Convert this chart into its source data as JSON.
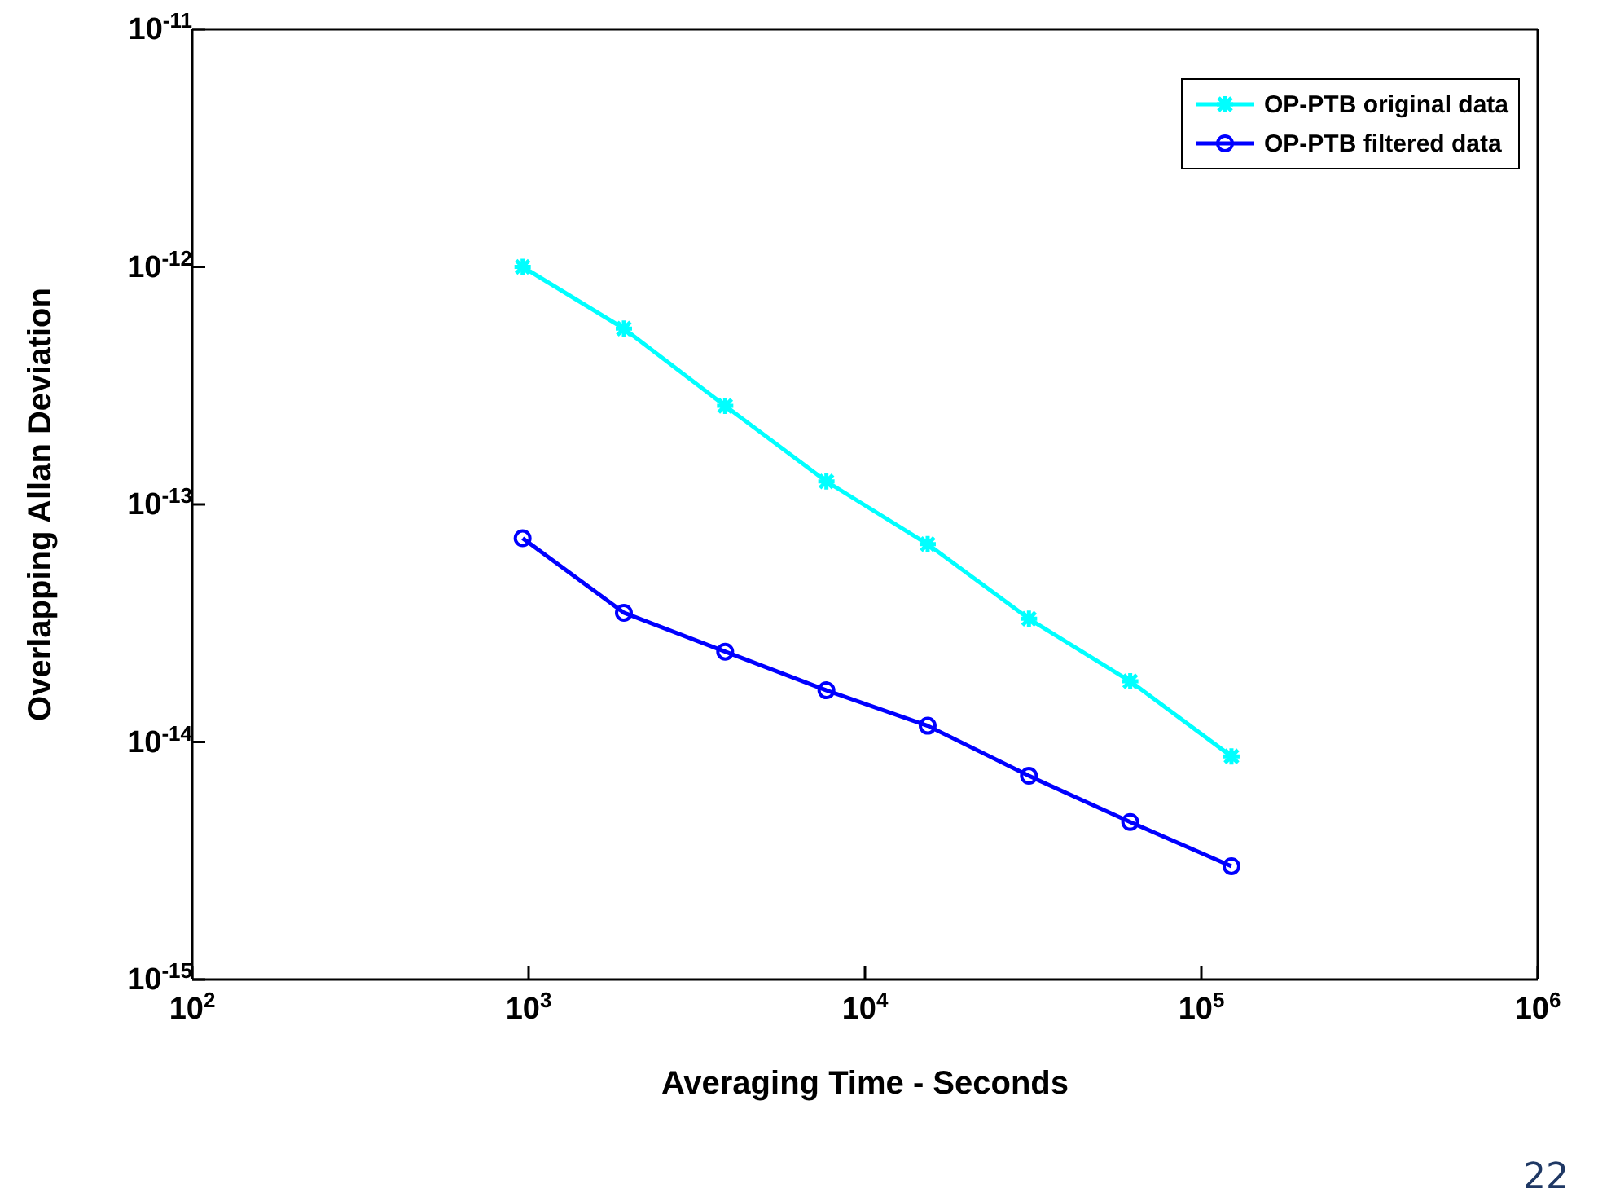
{
  "chart_data": {
    "type": "line",
    "xlabel": "Averaging Time - Seconds",
    "ylabel": "Overlapping Allan Deviation",
    "log": "xy",
    "legend": "top right",
    "x": [
      960,
      1920,
      3840,
      7680,
      15360,
      30720,
      61440,
      122880
    ],
    "xlim": [
      100,
      1000000
    ],
    "xticks": [
      {
        "value": 100,
        "label": "10$^{2}$"
      },
      {
        "value": 1000,
        "label": "10$^{3}$"
      },
      {
        "value": 10000,
        "label": "10$^{4}$"
      },
      {
        "value": 100000,
        "label": "10$^{5}$"
      },
      {
        "value": 1000000,
        "label": "10$^{6}$"
      }
    ],
    "ylim": [
      1e-15,
      1e-11
    ],
    "yticks": [
      {
        "value": 1e-15,
        "label": "10$^{-15}$"
      },
      {
        "value": 1e-14,
        "label": "10$^{-14}$"
      },
      {
        "value": 1e-13,
        "label": "10$^{-13}$"
      },
      {
        "value": 1e-12,
        "label": "10$^{-12}$"
      },
      {
        "value": 1e-11,
        "label": "10$^{-11}$"
      }
    ],
    "series": [
      {
        "name": "OP-PTB original data",
        "color": "#00ffff",
        "marker": "cross",
        "values": [
          1e-12,
          5.5e-13,
          2.6e-13,
          1.25e-13,
          6.8e-14,
          3.3e-14,
          1.8e-14,
          8.7e-15
        ]
      },
      {
        "name": "OP-PTB filtered data",
        "color": "#0000ff",
        "marker": "circle",
        "values": [
          7.2e-14,
          3.5e-14,
          2.4e-14,
          1.65e-14,
          1.17e-14,
          7.2e-15,
          4.6e-15,
          3e-15
        ]
      }
    ],
    "annotations": [
      "22"
    ]
  }
}
